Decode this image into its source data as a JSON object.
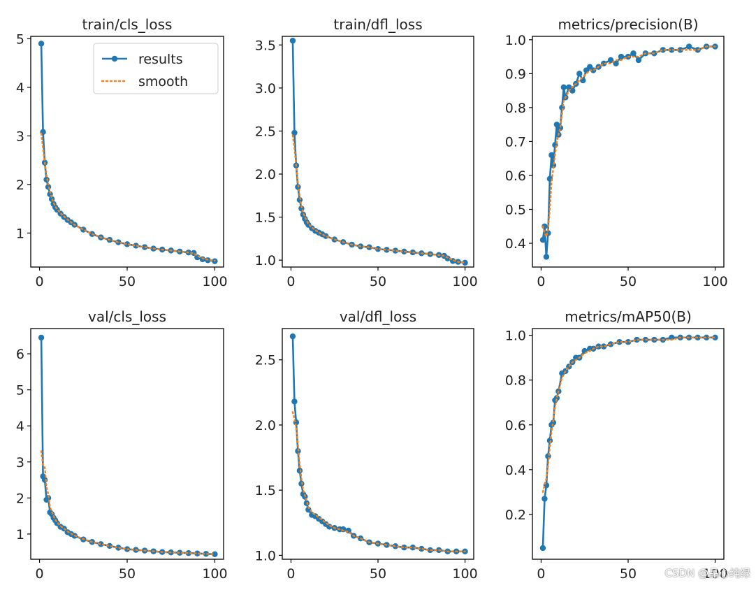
{
  "colors": {
    "results": "#1f77b4",
    "smooth": "#ff7f0e",
    "axis": "#000000",
    "text": "#222222"
  },
  "legend": {
    "results_label": "results",
    "smooth_label": "smooth",
    "placement": "upper-right"
  },
  "watermark": "CSDN @晶心纯绿",
  "chart_data": [
    {
      "type": "line",
      "title": "train/cls_loss",
      "xlim": [
        -5,
        105
      ],
      "ylim": [
        0.3,
        5.05
      ],
      "yticks": [
        1,
        2,
        3,
        4,
        5
      ],
      "xticks": [
        0,
        50,
        100
      ],
      "legend": true,
      "series": [
        {
          "name": "results",
          "x": [
            1,
            2,
            3,
            4,
            5,
            6,
            7,
            8,
            9,
            10,
            12,
            14,
            16,
            18,
            20,
            25,
            30,
            35,
            40,
            45,
            50,
            55,
            60,
            65,
            70,
            75,
            80,
            85,
            88,
            90,
            93,
            96,
            100
          ],
          "values": [
            4.9,
            3.08,
            2.45,
            2.1,
            1.95,
            1.8,
            1.7,
            1.6,
            1.53,
            1.48,
            1.4,
            1.33,
            1.27,
            1.22,
            1.17,
            1.07,
            0.98,
            0.91,
            0.86,
            0.81,
            0.77,
            0.74,
            0.71,
            0.68,
            0.66,
            0.64,
            0.62,
            0.6,
            0.59,
            0.5,
            0.46,
            0.44,
            0.42
          ]
        },
        {
          "name": "smooth",
          "x": [
            1,
            2,
            3,
            4,
            5,
            6,
            7,
            8,
            9,
            10,
            12,
            14,
            16,
            18,
            20,
            25,
            30,
            35,
            40,
            45,
            50,
            55,
            60,
            65,
            70,
            75,
            80,
            85,
            88,
            90,
            93,
            96,
            100
          ],
          "values": [
            3.05,
            2.75,
            2.45,
            2.2,
            2.0,
            1.85,
            1.73,
            1.63,
            1.55,
            1.49,
            1.41,
            1.34,
            1.28,
            1.22,
            1.17,
            1.07,
            0.98,
            0.91,
            0.86,
            0.81,
            0.77,
            0.74,
            0.71,
            0.68,
            0.66,
            0.64,
            0.62,
            0.6,
            0.58,
            0.53,
            0.48,
            0.45,
            0.43
          ]
        }
      ]
    },
    {
      "type": "line",
      "title": "train/dfl_loss",
      "xlim": [
        -5,
        105
      ],
      "ylim": [
        0.92,
        3.6
      ],
      "yticks": [
        1.0,
        1.5,
        2.0,
        2.5,
        3.0,
        3.5
      ],
      "xticks": [
        0,
        50,
        100
      ],
      "series": [
        {
          "name": "results",
          "x": [
            1,
            2,
            3,
            4,
            5,
            6,
            7,
            8,
            9,
            10,
            12,
            14,
            16,
            18,
            20,
            25,
            30,
            35,
            40,
            45,
            50,
            55,
            60,
            65,
            70,
            75,
            80,
            85,
            88,
            90,
            93,
            96,
            100
          ],
          "values": [
            3.55,
            2.48,
            2.1,
            1.85,
            1.7,
            1.6,
            1.53,
            1.48,
            1.44,
            1.41,
            1.37,
            1.34,
            1.32,
            1.3,
            1.28,
            1.24,
            1.21,
            1.18,
            1.16,
            1.15,
            1.13,
            1.12,
            1.11,
            1.1,
            1.09,
            1.08,
            1.07,
            1.06,
            1.05,
            1.02,
            0.99,
            0.98,
            0.97
          ]
        },
        {
          "name": "smooth",
          "x": [
            1,
            2,
            3,
            4,
            5,
            6,
            7,
            8,
            9,
            10,
            12,
            14,
            16,
            18,
            20,
            25,
            30,
            35,
            40,
            45,
            50,
            55,
            60,
            65,
            70,
            75,
            80,
            85,
            88,
            90,
            93,
            96,
            100
          ],
          "values": [
            2.45,
            2.3,
            2.1,
            1.9,
            1.75,
            1.63,
            1.55,
            1.5,
            1.46,
            1.42,
            1.38,
            1.35,
            1.32,
            1.3,
            1.28,
            1.24,
            1.21,
            1.18,
            1.16,
            1.15,
            1.13,
            1.12,
            1.11,
            1.1,
            1.09,
            1.08,
            1.07,
            1.06,
            1.05,
            1.03,
            1.0,
            0.98,
            0.97
          ]
        }
      ]
    },
    {
      "type": "line",
      "title": "metrics/precision(B)",
      "xlim": [
        -5,
        105
      ],
      "ylim": [
        0.33,
        1.01
      ],
      "yticks": [
        0.4,
        0.5,
        0.6,
        0.7,
        0.8,
        0.9,
        1.0
      ],
      "xticks": [
        0,
        50,
        100
      ],
      "series": [
        {
          "name": "results",
          "x": [
            1,
            2,
            3,
            4,
            5,
            6,
            7,
            8,
            9,
            10,
            11,
            12,
            13,
            14,
            16,
            18,
            20,
            22,
            24,
            26,
            28,
            30,
            33,
            36,
            40,
            43,
            46,
            50,
            53,
            56,
            60,
            65,
            70,
            75,
            80,
            85,
            90,
            95,
            100
          ],
          "values": [
            0.41,
            0.45,
            0.36,
            0.43,
            0.59,
            0.66,
            0.63,
            0.69,
            0.75,
            0.72,
            0.74,
            0.8,
            0.86,
            0.83,
            0.86,
            0.85,
            0.87,
            0.9,
            0.88,
            0.91,
            0.92,
            0.91,
            0.92,
            0.93,
            0.94,
            0.93,
            0.95,
            0.95,
            0.96,
            0.94,
            0.96,
            0.96,
            0.97,
            0.97,
            0.97,
            0.98,
            0.97,
            0.98,
            0.98
          ]
        },
        {
          "name": "smooth",
          "x": [
            1,
            2,
            3,
            4,
            5,
            6,
            7,
            8,
            9,
            10,
            11,
            12,
            13,
            14,
            16,
            18,
            20,
            22,
            24,
            26,
            28,
            30,
            33,
            36,
            40,
            43,
            46,
            50,
            53,
            56,
            60,
            65,
            70,
            75,
            80,
            85,
            90,
            95,
            100
          ],
          "values": [
            0.45,
            0.43,
            0.42,
            0.44,
            0.5,
            0.58,
            0.62,
            0.66,
            0.7,
            0.72,
            0.74,
            0.78,
            0.82,
            0.83,
            0.85,
            0.86,
            0.87,
            0.88,
            0.89,
            0.9,
            0.91,
            0.91,
            0.92,
            0.93,
            0.93,
            0.94,
            0.94,
            0.95,
            0.95,
            0.95,
            0.96,
            0.96,
            0.97,
            0.97,
            0.97,
            0.97,
            0.97,
            0.98,
            0.98
          ]
        }
      ]
    },
    {
      "type": "line",
      "title": "val/cls_loss",
      "xlim": [
        -5,
        105
      ],
      "ylim": [
        0.3,
        6.7
      ],
      "yticks": [
        1,
        2,
        3,
        4,
        5,
        6
      ],
      "xticks": [
        0,
        50,
        100
      ],
      "series": [
        {
          "name": "results",
          "x": [
            1,
            2,
            3,
            4,
            5,
            6,
            7,
            8,
            9,
            10,
            12,
            14,
            16,
            18,
            20,
            25,
            30,
            35,
            40,
            45,
            50,
            55,
            60,
            65,
            70,
            75,
            80,
            85,
            90,
            95,
            100
          ],
          "values": [
            6.45,
            2.6,
            2.5,
            1.95,
            2.0,
            1.6,
            1.55,
            1.45,
            1.38,
            1.3,
            1.2,
            1.15,
            1.05,
            1.0,
            0.95,
            0.85,
            0.78,
            0.72,
            0.67,
            0.62,
            0.58,
            0.56,
            0.54,
            0.52,
            0.5,
            0.49,
            0.48,
            0.47,
            0.46,
            0.45,
            0.44
          ]
        },
        {
          "name": "smooth",
          "x": [
            1,
            2,
            3,
            4,
            5,
            6,
            7,
            8,
            9,
            10,
            12,
            14,
            16,
            18,
            20,
            25,
            30,
            35,
            40,
            45,
            50,
            55,
            60,
            65,
            70,
            75,
            80,
            85,
            90,
            95,
            100
          ],
          "values": [
            3.3,
            2.9,
            2.85,
            2.3,
            2.1,
            1.75,
            1.62,
            1.5,
            1.4,
            1.33,
            1.22,
            1.15,
            1.07,
            1.01,
            0.96,
            0.86,
            0.78,
            0.72,
            0.67,
            0.62,
            0.58,
            0.56,
            0.54,
            0.52,
            0.5,
            0.49,
            0.48,
            0.47,
            0.46,
            0.45,
            0.44
          ]
        }
      ]
    },
    {
      "type": "line",
      "title": "val/dfl_loss",
      "xlim": [
        -5,
        105
      ],
      "ylim": [
        0.97,
        2.74
      ],
      "yticks": [
        1.0,
        1.5,
        2.0,
        2.5
      ],
      "xticks": [
        0,
        50,
        100
      ],
      "series": [
        {
          "name": "results",
          "x": [
            1,
            2,
            3,
            4,
            5,
            6,
            7,
            8,
            9,
            10,
            12,
            14,
            16,
            18,
            20,
            22,
            25,
            28,
            30,
            33,
            36,
            40,
            45,
            50,
            55,
            60,
            65,
            70,
            75,
            80,
            85,
            90,
            95,
            100
          ],
          "values": [
            2.68,
            2.18,
            2.02,
            1.8,
            1.65,
            1.55,
            1.47,
            1.45,
            1.4,
            1.35,
            1.31,
            1.3,
            1.28,
            1.26,
            1.24,
            1.22,
            1.21,
            1.2,
            1.2,
            1.19,
            1.15,
            1.13,
            1.1,
            1.09,
            1.08,
            1.07,
            1.06,
            1.06,
            1.05,
            1.04,
            1.04,
            1.03,
            1.03,
            1.03
          ]
        },
        {
          "name": "smooth",
          "x": [
            1,
            2,
            3,
            4,
            5,
            6,
            7,
            8,
            9,
            10,
            12,
            14,
            16,
            18,
            20,
            22,
            25,
            28,
            30,
            33,
            36,
            40,
            45,
            50,
            55,
            60,
            65,
            70,
            75,
            80,
            85,
            90,
            95,
            100
          ],
          "values": [
            2.1,
            2.05,
            1.98,
            1.85,
            1.7,
            1.59,
            1.5,
            1.46,
            1.42,
            1.37,
            1.33,
            1.31,
            1.29,
            1.27,
            1.25,
            1.23,
            1.21,
            1.2,
            1.19,
            1.18,
            1.15,
            1.13,
            1.1,
            1.09,
            1.08,
            1.07,
            1.06,
            1.06,
            1.05,
            1.04,
            1.04,
            1.03,
            1.03,
            1.03
          ]
        }
      ]
    },
    {
      "type": "line",
      "title": "metrics/mAP50(B)",
      "xlim": [
        -5,
        105
      ],
      "ylim": [
        0.0,
        1.03
      ],
      "yticks": [
        0.2,
        0.4,
        0.6,
        0.8,
        1.0
      ],
      "xticks": [
        0,
        50,
        100
      ],
      "series": [
        {
          "name": "results",
          "x": [
            1,
            2,
            3,
            4,
            5,
            6,
            7,
            8,
            9,
            10,
            12,
            14,
            16,
            18,
            20,
            22,
            25,
            28,
            30,
            33,
            36,
            40,
            45,
            50,
            55,
            60,
            65,
            70,
            75,
            80,
            85,
            90,
            95,
            100
          ],
          "values": [
            0.05,
            0.27,
            0.33,
            0.46,
            0.53,
            0.6,
            0.61,
            0.71,
            0.72,
            0.75,
            0.83,
            0.84,
            0.86,
            0.88,
            0.9,
            0.9,
            0.93,
            0.94,
            0.94,
            0.95,
            0.95,
            0.96,
            0.97,
            0.97,
            0.98,
            0.98,
            0.98,
            0.98,
            0.99,
            0.99,
            0.99,
            0.99,
            0.99,
            0.99
          ]
        },
        {
          "name": "smooth",
          "x": [
            1,
            2,
            3,
            4,
            5,
            6,
            7,
            8,
            9,
            10,
            12,
            14,
            16,
            18,
            20,
            22,
            25,
            28,
            30,
            33,
            36,
            40,
            45,
            50,
            55,
            60,
            65,
            70,
            75,
            80,
            85,
            90,
            95,
            100
          ],
          "values": [
            0.3,
            0.33,
            0.36,
            0.42,
            0.5,
            0.57,
            0.62,
            0.68,
            0.72,
            0.75,
            0.81,
            0.84,
            0.86,
            0.88,
            0.89,
            0.9,
            0.92,
            0.93,
            0.94,
            0.95,
            0.95,
            0.96,
            0.97,
            0.97,
            0.98,
            0.98,
            0.98,
            0.98,
            0.98,
            0.99,
            0.99,
            0.99,
            0.99,
            0.99
          ]
        }
      ]
    }
  ]
}
